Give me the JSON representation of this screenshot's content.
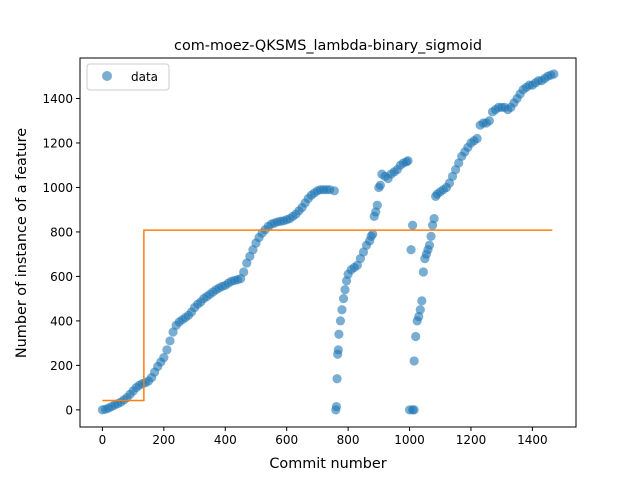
{
  "chart_data": {
    "type": "scatter",
    "title": "com-moez-QKSMS_lambda-binary_sigmoid",
    "xlabel": "Commit number",
    "ylabel": "Number of instance of a feature",
    "xlim": [
      -73,
      1542
    ],
    "ylim": [
      -77,
      1582
    ],
    "xticks": [
      "0",
      "200",
      "400",
      "600",
      "800",
      "1000",
      "1200",
      "1400"
    ],
    "xtick_values": [
      0,
      200,
      400,
      600,
      800,
      1000,
      1200,
      1400
    ],
    "yticks": [
      "0",
      "200",
      "400",
      "600",
      "800",
      "1000",
      "1200",
      "1400"
    ],
    "ytick_values": [
      0,
      200,
      400,
      600,
      800,
      1000,
      1200,
      1400
    ],
    "legend": {
      "placement": "top-left",
      "entries": [
        "data"
      ]
    },
    "colors": {
      "data": "#1f77b4",
      "fit": "#ff7f0e"
    },
    "series": [
      {
        "name": "data",
        "kind": "scatter",
        "segments": [
          {
            "x": [
              0,
              10,
              20,
              30,
              40,
              50,
              60,
              70,
              80,
              90,
              100,
              110,
              120,
              130,
              140,
              150,
              160,
              170,
              180,
              190,
              200,
              210,
              220,
              230,
              240,
              250,
              260,
              270,
              280,
              290,
              300,
              310,
              320,
              330,
              340,
              350,
              360,
              370,
              380,
              390,
              400,
              410,
              420,
              430,
              440,
              450,
              460,
              470,
              480,
              490,
              500,
              510,
              520,
              530,
              540,
              550,
              560,
              570,
              580,
              590,
              600,
              610,
              620,
              630,
              640,
              650,
              660,
              670,
              680,
              690,
              700,
              710,
              720,
              730,
              740,
              755
            ],
            "y": [
              0,
              3,
              8,
              15,
              22,
              28,
              35,
              45,
              55,
              70,
              85,
              100,
              110,
              118,
              122,
              130,
              145,
              170,
              195,
              215,
              235,
              270,
              310,
              350,
              380,
              395,
              405,
              415,
              425,
              440,
              460,
              475,
              485,
              500,
              510,
              520,
              530,
              540,
              548,
              555,
              560,
              570,
              578,
              582,
              585,
              590,
              620,
              660,
              690,
              720,
              750,
              775,
              795,
              810,
              825,
              835,
              840,
              845,
              848,
              850,
              855,
              860,
              870,
              880,
              895,
              910,
              930,
              950,
              965,
              975,
              985,
              990,
              990,
              990,
              990,
              985
            ]
          },
          {
            "x": [
              760,
              762,
              764,
              766,
              768,
              770,
              775,
              780,
              785,
              790,
              795,
              800,
              810,
              820,
              830,
              840,
              850,
              860,
              870,
              875,
              880,
              885,
              890,
              895,
              900,
              905,
              910,
              920,
              930,
              940,
              950,
              960,
              970,
              980,
              990,
              995
            ],
            "y": [
              0,
              15,
              140,
              250,
              270,
              340,
              400,
              450,
              500,
              540,
              580,
              610,
              630,
              640,
              650,
              680,
              710,
              740,
              760,
              780,
              790,
              870,
              890,
              920,
              1000,
              1010,
              1060,
              1050,
              1040,
              1060,
              1070,
              1080,
              1100,
              1110,
              1115,
              1120
            ]
          },
          {
            "x": [
              1000,
              1005,
              1010,
              1015,
              1020,
              1025,
              1030,
              1035,
              1040,
              1045,
              1050,
              1055,
              1060,
              1065,
              1070,
              1075,
              1080,
              1085
            ],
            "y": [
              0,
              720,
              830,
              220,
              330,
              400,
              420,
              450,
              490,
              620,
              680,
              700,
              720,
              740,
              780,
              830,
              860,
              960
            ]
          },
          {
            "x": [
              1010,
              1015
            ],
            "y": [
              0,
              0
            ]
          },
          {
            "x": [
              1090,
              1100,
              1110,
              1120,
              1130,
              1140,
              1150,
              1160,
              1170,
              1180,
              1190,
              1200,
              1210,
              1220,
              1230,
              1240,
              1250,
              1260,
              1270,
              1280,
              1290,
              1300,
              1310,
              1320,
              1330,
              1340,
              1350,
              1360,
              1370,
              1380,
              1390,
              1400,
              1410,
              1420,
              1430,
              1440,
              1450,
              1460,
              1470
            ],
            "y": [
              970,
              980,
              990,
              1000,
              1020,
              1050,
              1080,
              1110,
              1140,
              1160,
              1180,
              1200,
              1210,
              1220,
              1280,
              1290,
              1290,
              1300,
              1340,
              1350,
              1360,
              1360,
              1360,
              1350,
              1360,
              1380,
              1400,
              1420,
              1440,
              1450,
              1460,
              1460,
              1470,
              1480,
              1480,
              1490,
              1500,
              1505,
              1510
            ]
          }
        ]
      },
      {
        "name": "",
        "kind": "line",
        "x": [
          0,
          135,
          135,
          1465
        ],
        "y": [
          42,
          42,
          808,
          808
        ]
      }
    ]
  }
}
